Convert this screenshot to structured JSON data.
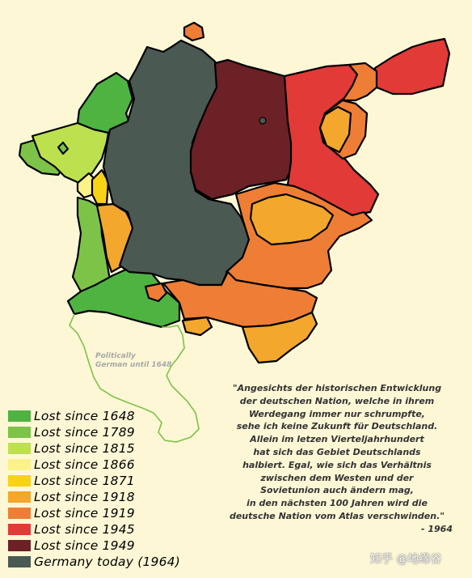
{
  "colors": {
    "lost_1648": "#4fb341",
    "lost_1789": "#7dc348",
    "lost_1815": "#bde04f",
    "lost_1866": "#fbf28a",
    "lost_1871": "#f8d214",
    "lost_1918": "#f3a72c",
    "lost_1919": "#ee7e35",
    "lost_1945": "#e23a37",
    "lost_1949": "#6b2125",
    "germany_1964": "#4a5952",
    "politically_border": "#7dc348",
    "background": "#fdf7d6"
  },
  "legend": [
    {
      "label": "Lost since 1648",
      "color": "#4fb341"
    },
    {
      "label": "Lost since 1789",
      "color": "#7dc348"
    },
    {
      "label": "Lost since 1815",
      "color": "#bde04f"
    },
    {
      "label": "Lost since 1866",
      "color": "#fbf28a"
    },
    {
      "label": "Lost since 1871",
      "color": "#f8d214"
    },
    {
      "label": "Lost since 1918",
      "color": "#f3a72c"
    },
    {
      "label": "Lost since 1919",
      "color": "#ee7e35"
    },
    {
      "label": "Lost since 1945",
      "color": "#e23a37"
    },
    {
      "label": "Lost since 1949",
      "color": "#6b2125"
    },
    {
      "label": "Germany today (1964)",
      "color": "#4a5952"
    }
  ],
  "quote": {
    "lines": [
      "\"Angesichts der historischen Entwicklung",
      "der deutschen Nation, welche in ihrem",
      "Werdegang immer nur schrumpfte,",
      "sehe ich keine Zukunft für Deutschland.",
      "Allein im letzen Vierteljahrhundert",
      "hat sich das Gebiet Deutschlands",
      "halbiert. Egal, wie sich das Verhältnis",
      "zwischen dem Westen und der",
      "Sovietunion auch ändern mag,",
      "in den nächsten 100 Jahren wird die",
      "deutsche Nation vom Atlas verschwinden.\""
    ],
    "attribution": "- 1964"
  },
  "map_label": {
    "line1": "Politically",
    "line2": "German until 1648"
  },
  "watermark": "知乎 @地缘谷"
}
